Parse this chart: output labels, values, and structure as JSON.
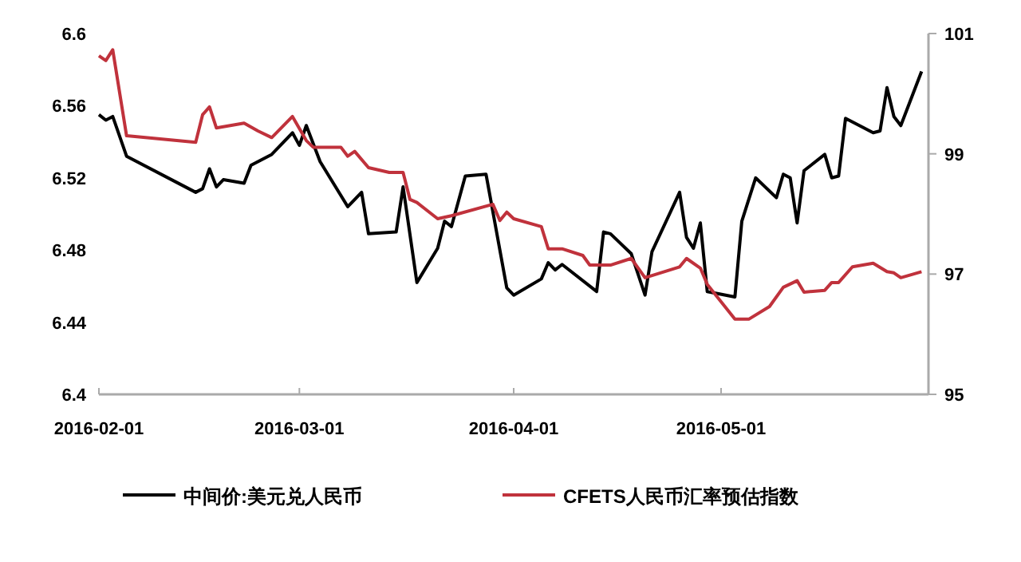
{
  "chart_data": {
    "type": "line",
    "legend": "bottom",
    "xlim": [
      "2016-02-01",
      "2016-05-31"
    ],
    "xticks": [
      "2016-02-01",
      "2016-03-01",
      "2016-04-01",
      "2016-05-01"
    ],
    "ylim": [
      6.4,
      6.6
    ],
    "yticks": [
      6.4,
      6.44,
      6.48,
      6.52,
      6.56,
      6.6
    ],
    "y2lim": [
      95,
      101
    ],
    "y2ticks": [
      95,
      97,
      99,
      101
    ],
    "series": [
      {
        "name": "中间价:美元兑人民币",
        "color": "#000000",
        "x": [
          "2016-02-01",
          "2016-02-02",
          "2016-02-03",
          "2016-02-05",
          "2016-02-15",
          "2016-02-16",
          "2016-02-17",
          "2016-02-18",
          "2016-02-19",
          "2016-02-22",
          "2016-02-23",
          "2016-02-26",
          "2016-02-29",
          "2016-03-01",
          "2016-03-02",
          "2016-03-04",
          "2016-03-08",
          "2016-03-10",
          "2016-03-11",
          "2016-03-15",
          "2016-03-16",
          "2016-03-18",
          "2016-03-21",
          "2016-03-22",
          "2016-03-23",
          "2016-03-25",
          "2016-03-28",
          "2016-03-31",
          "2016-04-01",
          "2016-04-05",
          "2016-04-06",
          "2016-04-07",
          "2016-04-08",
          "2016-04-13",
          "2016-04-14",
          "2016-04-15",
          "2016-04-18",
          "2016-04-20",
          "2016-04-21",
          "2016-04-25",
          "2016-04-26",
          "2016-04-27",
          "2016-04-28",
          "2016-04-29",
          "2016-05-03",
          "2016-05-04",
          "2016-05-06",
          "2016-05-09",
          "2016-05-10",
          "2016-05-11",
          "2016-05-12",
          "2016-05-13",
          "2016-05-16",
          "2016-05-17",
          "2016-05-18",
          "2016-05-19",
          "2016-05-23",
          "2016-05-24",
          "2016-05-25",
          "2016-05-26",
          "2016-05-27",
          "2016-05-30"
        ],
        "values": [
          6.555,
          6.552,
          6.554,
          6.532,
          6.512,
          6.514,
          6.525,
          6.515,
          6.519,
          6.517,
          6.527,
          6.533,
          6.545,
          6.538,
          6.549,
          6.529,
          6.504,
          6.512,
          6.489,
          6.49,
          6.515,
          6.462,
          6.481,
          6.496,
          6.493,
          6.521,
          6.522,
          6.459,
          6.455,
          6.464,
          6.473,
          6.469,
          6.472,
          6.457,
          6.49,
          6.489,
          6.478,
          6.455,
          6.479,
          6.512,
          6.487,
          6.481,
          6.495,
          6.457,
          6.454,
          6.496,
          6.52,
          6.509,
          6.522,
          6.52,
          6.495,
          6.524,
          6.533,
          6.52,
          6.521,
          6.553,
          6.545,
          6.546,
          6.57,
          6.554,
          6.549,
          6.579
        ]
      },
      {
        "name": "CFETS人民币汇率预估指数",
        "color": "#c0323c",
        "axis": "y2",
        "x": [
          "2016-02-01",
          "2016-02-02",
          "2016-02-03",
          "2016-02-05",
          "2016-02-15",
          "2016-02-16",
          "2016-02-17",
          "2016-02-18",
          "2016-02-22",
          "2016-02-24",
          "2016-02-26",
          "2016-02-29",
          "2016-03-02",
          "2016-03-03",
          "2016-03-07",
          "2016-03-08",
          "2016-03-09",
          "2016-03-11",
          "2016-03-14",
          "2016-03-16",
          "2016-03-17",
          "2016-03-18",
          "2016-03-21",
          "2016-03-23",
          "2016-03-29",
          "2016-03-30",
          "2016-03-31",
          "2016-04-01",
          "2016-04-05",
          "2016-04-06",
          "2016-04-08",
          "2016-04-11",
          "2016-04-12",
          "2016-04-15",
          "2016-04-18",
          "2016-04-20",
          "2016-04-25",
          "2016-04-26",
          "2016-04-28",
          "2016-04-29",
          "2016-05-03",
          "2016-05-05",
          "2016-05-08",
          "2016-05-10",
          "2016-05-12",
          "2016-05-13",
          "2016-05-16",
          "2016-05-17",
          "2016-05-18",
          "2016-05-20",
          "2016-05-23",
          "2016-05-25",
          "2016-05-26",
          "2016-05-27",
          "2016-05-30"
        ],
        "values": [
          100.63,
          100.55,
          100.73,
          99.3,
          99.19,
          99.65,
          99.78,
          99.43,
          99.51,
          99.38,
          99.27,
          99.62,
          99.22,
          99.11,
          99.11,
          98.96,
          99.04,
          98.77,
          98.69,
          98.69,
          98.24,
          98.19,
          97.92,
          97.97,
          98.16,
          97.89,
          98.03,
          97.92,
          97.79,
          97.42,
          97.42,
          97.31,
          97.15,
          97.15,
          97.26,
          96.94,
          97.12,
          97.26,
          97.1,
          96.83,
          96.25,
          96.25,
          96.46,
          96.78,
          96.89,
          96.7,
          96.73,
          96.86,
          96.86,
          97.12,
          97.18,
          97.04,
          97.02,
          96.94,
          97.04
        ]
      }
    ]
  }
}
